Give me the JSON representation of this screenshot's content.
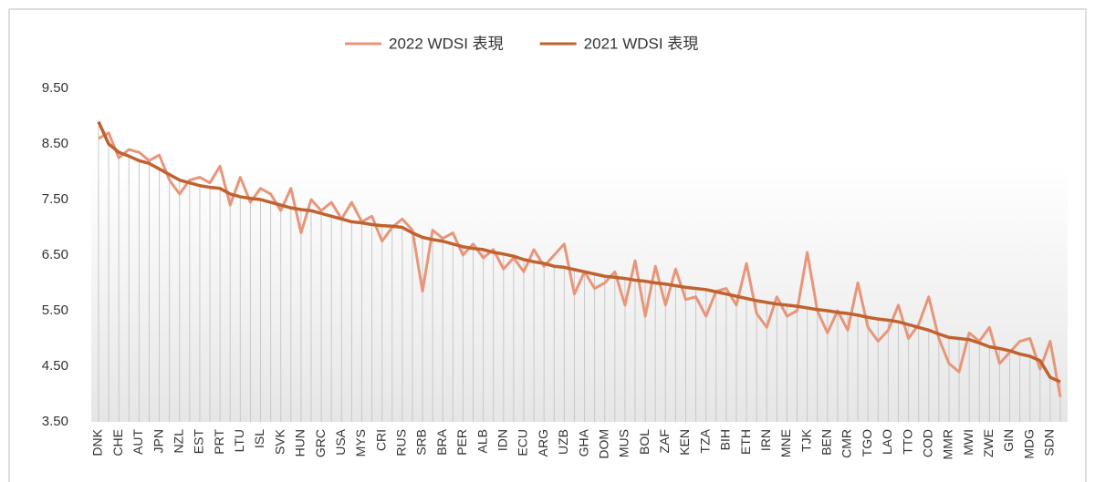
{
  "chart_data": {
    "type": "line",
    "categories": [
      "DNK",
      null,
      "CHE",
      null,
      "AUT",
      null,
      "JPN",
      null,
      "NZL",
      null,
      "EST",
      null,
      "PRT",
      null,
      "LTU",
      null,
      "ISL",
      null,
      "SVK",
      null,
      "HUN",
      null,
      "GRC",
      null,
      "USA",
      null,
      "MYS",
      null,
      "CRI",
      null,
      "RUS",
      null,
      "SRB",
      null,
      "BRA",
      null,
      "PER",
      null,
      "ALB",
      null,
      "IDN",
      null,
      "ECU",
      null,
      "ARG",
      null,
      "UZB",
      null,
      "GHA",
      null,
      "DOM",
      null,
      "MUS",
      null,
      "BOL",
      null,
      "ZAF",
      null,
      "KEN",
      null,
      "TZA",
      null,
      "BIH",
      null,
      "ETH",
      null,
      "IRN",
      null,
      "MNE",
      null,
      "TJK",
      null,
      "BEN",
      null,
      "CMR",
      null,
      "TGO",
      null,
      "LAO",
      null,
      "TTO",
      null,
      "COD",
      null,
      "MMR",
      null,
      "MWI",
      null,
      "ZWE",
      null,
      "GIN",
      null,
      "MDG",
      null,
      "SDN",
      null
    ],
    "series": [
      {
        "name": "2022 WDSI 表現",
        "color": "#e8967a",
        "values": [
          8.6,
          8.7,
          8.25,
          8.4,
          8.35,
          8.2,
          8.3,
          7.85,
          7.6,
          7.85,
          7.9,
          7.8,
          8.1,
          7.4,
          7.9,
          7.45,
          7.7,
          7.6,
          7.3,
          7.7,
          6.9,
          7.5,
          7.3,
          7.45,
          7.15,
          7.45,
          7.1,
          7.2,
          6.75,
          7.0,
          7.15,
          6.95,
          5.85,
          6.95,
          6.8,
          6.9,
          6.5,
          6.7,
          6.45,
          6.6,
          6.25,
          6.45,
          6.2,
          6.6,
          6.3,
          6.5,
          6.7,
          5.8,
          6.2,
          5.9,
          6.0,
          6.2,
          5.6,
          6.4,
          5.4,
          6.3,
          5.6,
          6.25,
          5.7,
          5.75,
          5.4,
          5.85,
          5.9,
          5.6,
          6.35,
          5.45,
          5.2,
          5.75,
          5.4,
          5.5,
          6.55,
          5.5,
          5.1,
          5.5,
          5.15,
          6.0,
          5.2,
          4.95,
          5.15,
          5.6,
          5.0,
          5.25,
          5.75,
          5.0,
          4.55,
          4.4,
          5.1,
          4.95,
          5.2,
          4.55,
          4.75,
          4.95,
          5.0,
          4.45,
          4.95,
          3.95
        ]
      },
      {
        "name": "2021 WDSI 表現",
        "color": "#c0622f",
        "values": [
          8.9,
          8.5,
          8.35,
          8.28,
          8.2,
          8.15,
          8.05,
          7.95,
          7.85,
          7.8,
          7.75,
          7.72,
          7.7,
          7.6,
          7.55,
          7.52,
          7.5,
          7.45,
          7.4,
          7.35,
          7.32,
          7.3,
          7.25,
          7.2,
          7.15,
          7.1,
          7.08,
          7.05,
          7.03,
          7.02,
          7.0,
          6.9,
          6.82,
          6.78,
          6.75,
          6.7,
          6.65,
          6.62,
          6.6,
          6.55,
          6.52,
          6.48,
          6.42,
          6.38,
          6.35,
          6.3,
          6.28,
          6.24,
          6.2,
          6.16,
          6.12,
          6.1,
          6.08,
          6.05,
          6.03,
          6.0,
          5.98,
          5.95,
          5.92,
          5.9,
          5.88,
          5.84,
          5.8,
          5.76,
          5.72,
          5.68,
          5.65,
          5.62,
          5.6,
          5.58,
          5.55,
          5.52,
          5.5,
          5.47,
          5.45,
          5.42,
          5.38,
          5.35,
          5.33,
          5.3,
          5.25,
          5.2,
          5.15,
          5.08,
          5.02,
          5.0,
          4.98,
          4.92,
          4.85,
          4.82,
          4.78,
          4.72,
          4.68,
          4.6,
          4.3,
          4.22
        ]
      }
    ],
    "ylim": [
      3.5,
      9.5
    ],
    "yticks": [
      {
        "value": 3.5,
        "label": "3.50"
      },
      {
        "value": 4.5,
        "label": "4.50"
      },
      {
        "value": 5.5,
        "label": "5.50"
      },
      {
        "value": 6.5,
        "label": "6.50"
      },
      {
        "value": 7.5,
        "label": "7.50"
      },
      {
        "value": 8.5,
        "label": "8.50"
      },
      {
        "value": 9.5,
        "label": "9.50"
      }
    ],
    "legend": "top"
  }
}
